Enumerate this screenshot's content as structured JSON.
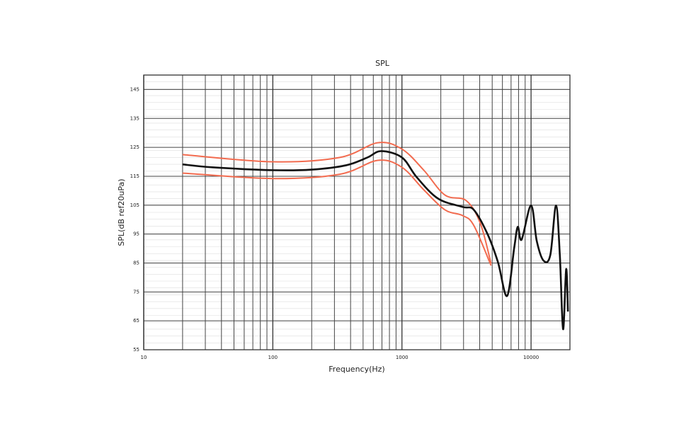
{
  "chart_data": {
    "type": "line",
    "title": "SPL",
    "x_label": "Frequency(Hz)",
    "y_label": "SPL(dB ref20uPa)",
    "xscale": "log",
    "xlim": [
      10,
      20000
    ],
    "xticks": [
      10,
      100,
      1000,
      10000
    ],
    "x_minor_grid": [
      20,
      30,
      40,
      50,
      60,
      70,
      80,
      90,
      200,
      300,
      400,
      500,
      600,
      700,
      800,
      900,
      2000,
      3000,
      4000,
      5000,
      6000,
      7000,
      8000,
      9000
    ],
    "ylim": [
      55,
      150
    ],
    "yticks": [
      55,
      65,
      75,
      85,
      95,
      105,
      115,
      125,
      135,
      145
    ],
    "grid": true,
    "series": [
      {
        "color": "#f26b4f",
        "x": [
          20,
          100,
          330,
          650,
          1000,
          1476,
          2150,
          3140,
          4040,
          4900
        ],
        "values": [
          122.5,
          120.0,
          121.5,
          126.6,
          124.4,
          117.1,
          108.5,
          106.6,
          98.8,
          84.8
        ]
      },
      {
        "color": "#f26b4f",
        "x": [
          20,
          100,
          330,
          650,
          1000,
          1476,
          2150,
          2950,
          3600,
          4900
        ],
        "values": [
          116.1,
          114.2,
          115.7,
          120.5,
          118.1,
          110.3,
          103.4,
          101.4,
          98.0,
          84.1
        ]
      },
      {
        "color": "#111111",
        "x": [
          20,
          34,
          100,
          200,
          370,
          540,
          690,
          1000,
          1300,
          1900,
          2950,
          3600,
          4590,
          5540,
          6520,
          7400,
          7890,
          8450,
          10000,
          11070,
          12500,
          14100,
          15600,
          16700,
          17700,
          18700,
          19300
        ],
        "values": [
          119.1,
          118.1,
          117.1,
          117.3,
          118.8,
          121.5,
          123.7,
          121.5,
          114.7,
          107.3,
          104.4,
          103.4,
          95.1,
          85.3,
          73.6,
          90.2,
          97.5,
          93.1,
          104.9,
          92.6,
          85.8,
          87.8,
          104.9,
          87.8,
          62.1,
          82.9,
          68.2
        ]
      }
    ]
  }
}
